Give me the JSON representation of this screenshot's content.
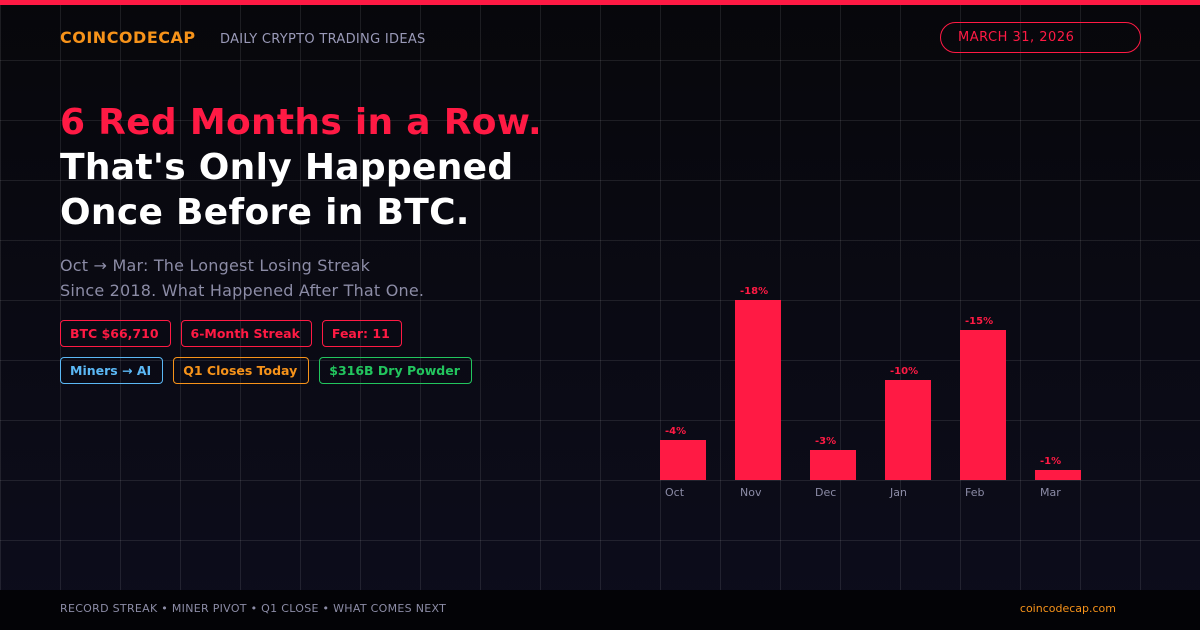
{
  "colors": {
    "accent": "#ff1a44",
    "brand": "#f7931a",
    "muted": "#8c8ca6",
    "blue": "#5bb8f5",
    "orange": "#f7931a",
    "green": "#22c55e"
  },
  "header": {
    "brand": "COINCODECAP",
    "tagline": "DAILY CRYPTO TRADING IDEAS",
    "date": "MARCH 31, 2026"
  },
  "headline": {
    "line1": "6 Red Months in a Row.",
    "line2": "That's Only Happened",
    "line3": "Once Before in BTC."
  },
  "subhead": {
    "line1": "Oct → Mar: The Longest Losing Streak",
    "line2": "Since 2018. What Happened After That One."
  },
  "tags": {
    "row1": [
      {
        "label": "BTC $66,710",
        "color": "#ff1a44"
      },
      {
        "label": "6-Month Streak",
        "color": "#ff1a44"
      },
      {
        "label": "Fear: 11",
        "color": "#ff1a44"
      }
    ],
    "row2": [
      {
        "label": "Miners → AI",
        "color": "#5bb8f5"
      },
      {
        "label": "Q1 Closes Today",
        "color": "#f7931a"
      },
      {
        "label": "$316B Dry Powder",
        "color": "#22c55e"
      }
    ]
  },
  "chart_data": {
    "type": "bar",
    "title": "",
    "xlabel": "",
    "ylabel": "",
    "categories": [
      "Oct",
      "Nov",
      "Dec",
      "Jan",
      "Feb",
      "Mar"
    ],
    "values": [
      -4,
      -18,
      -3,
      -10,
      -15,
      -1
    ],
    "data_labels": [
      "-4%",
      "-18%",
      "-3%",
      "-10%",
      "-15%",
      "-1%"
    ],
    "bar_color": "#ff1a44",
    "grid": true
  },
  "footer": {
    "topics": "RECORD STREAK  •  MINER PIVOT  •  Q1 CLOSE  •  WHAT COMES NEXT",
    "site": "coincodecap.com"
  }
}
